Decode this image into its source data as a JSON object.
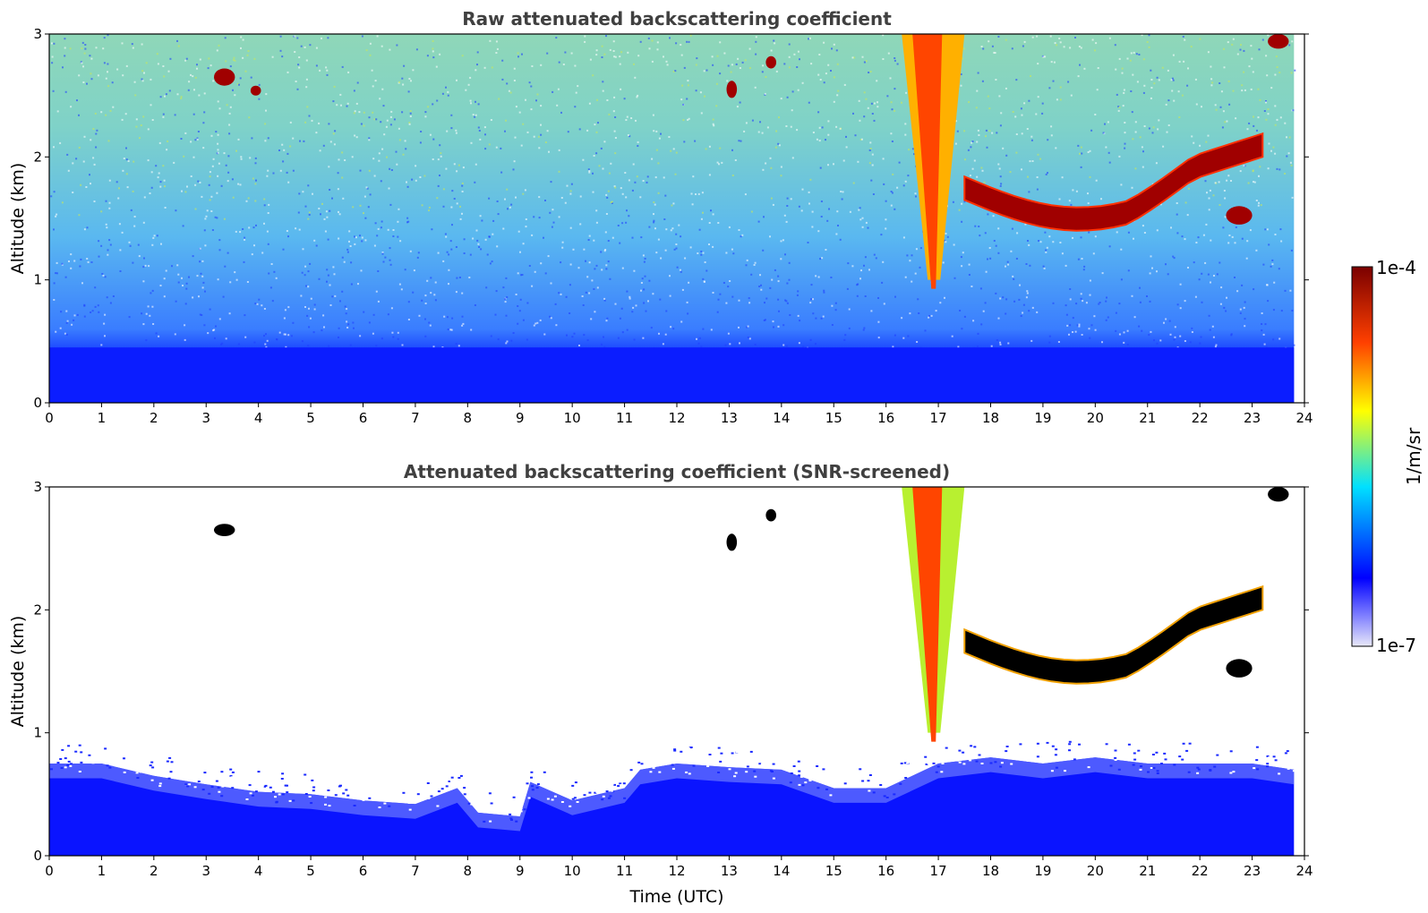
{
  "chart_data": [
    {
      "type": "heatmap",
      "title": "Raw attenuated backscattering coefficient",
      "xlabel": "",
      "ylabel": "Altitude (km)",
      "xlim": [
        0,
        24
      ],
      "ylim": [
        0,
        3
      ],
      "xticks": [
        "0",
        "1",
        "2",
        "3",
        "4",
        "5",
        "6",
        "7",
        "8",
        "9",
        "10",
        "11",
        "12",
        "13",
        "14",
        "15",
        "16",
        "17",
        "18",
        "19",
        "20",
        "21",
        "22",
        "23",
        "24"
      ],
      "yticks": [
        "0",
        "1",
        "2",
        "3"
      ],
      "features": [
        {
          "kind": "aerosol_layer",
          "t_start": 0,
          "t_end": 23.8,
          "alt_top": 0.45,
          "level": "blue"
        },
        {
          "kind": "background_noise",
          "t_start": 0,
          "t_end": 23.8,
          "alt_bottom": 0.45,
          "alt_top": 3.0,
          "level": "cyan-green"
        },
        {
          "kind": "cloud",
          "t_start": 3.15,
          "t_end": 3.55,
          "alt_bottom": 2.58,
          "alt_top": 2.72
        },
        {
          "kind": "cloud",
          "t_start": 3.85,
          "t_end": 4.05,
          "alt_bottom": 2.5,
          "alt_top": 2.58
        },
        {
          "kind": "cloud",
          "t_start": 12.95,
          "t_end": 13.15,
          "alt_bottom": 2.48,
          "alt_top": 2.62
        },
        {
          "kind": "cloud",
          "t_start": 13.7,
          "t_end": 13.9,
          "alt_bottom": 2.72,
          "alt_top": 2.82
        },
        {
          "kind": "virga",
          "t_start": 16.3,
          "t_end": 17.5,
          "alt_bottom": 1.0,
          "alt_top": 3.0
        },
        {
          "kind": "cloud_layer",
          "t_start": 17.5,
          "t_end": 23.2,
          "alt_bottom": 1.5,
          "alt_top": 2.1
        },
        {
          "kind": "cloud",
          "t_start": 22.5,
          "t_end": 23.0,
          "alt_bottom": 1.45,
          "alt_top": 1.6
        },
        {
          "kind": "cloud",
          "t_start": 23.3,
          "t_end": 23.7,
          "alt_bottom": 2.88,
          "alt_top": 3.0
        }
      ]
    },
    {
      "type": "heatmap",
      "title": "Attenuated backscattering coefficient (SNR-screened)",
      "xlabel": "Time (UTC)",
      "ylabel": "Altitude (km)",
      "xlim": [
        0,
        24
      ],
      "ylim": [
        0,
        3
      ],
      "xticks": [
        "0",
        "1",
        "2",
        "3",
        "4",
        "5",
        "6",
        "7",
        "8",
        "9",
        "10",
        "11",
        "12",
        "13",
        "14",
        "15",
        "16",
        "17",
        "18",
        "19",
        "20",
        "21",
        "22",
        "23",
        "24"
      ],
      "yticks": [
        "0",
        "1",
        "2",
        "3"
      ],
      "boundary_layer_top_km": [
        [
          0,
          0.75
        ],
        [
          1,
          0.75
        ],
        [
          2,
          0.65
        ],
        [
          3,
          0.58
        ],
        [
          4,
          0.52
        ],
        [
          5,
          0.5
        ],
        [
          6,
          0.45
        ],
        [
          7,
          0.42
        ],
        [
          7.8,
          0.55
        ],
        [
          8.2,
          0.35
        ],
        [
          9,
          0.32
        ],
        [
          9.2,
          0.6
        ],
        [
          10,
          0.45
        ],
        [
          11,
          0.55
        ],
        [
          11.3,
          0.7
        ],
        [
          12,
          0.75
        ],
        [
          13,
          0.72
        ],
        [
          14,
          0.7
        ],
        [
          15,
          0.55
        ],
        [
          16,
          0.55
        ],
        [
          17,
          0.75
        ],
        [
          18,
          0.8
        ],
        [
          19,
          0.75
        ],
        [
          20,
          0.8
        ],
        [
          21,
          0.75
        ],
        [
          22,
          0.75
        ],
        [
          23,
          0.75
        ],
        [
          23.8,
          0.7
        ]
      ],
      "features": [
        {
          "kind": "cloud",
          "t_start": 3.15,
          "t_end": 3.55,
          "alt_bottom": 2.6,
          "alt_top": 2.7
        },
        {
          "kind": "cloud",
          "t_start": 12.95,
          "t_end": 13.15,
          "alt_bottom": 2.48,
          "alt_top": 2.62
        },
        {
          "kind": "cloud",
          "t_start": 13.7,
          "t_end": 13.9,
          "alt_bottom": 2.72,
          "alt_top": 2.82
        },
        {
          "kind": "virga",
          "t_start": 16.3,
          "t_end": 17.5,
          "alt_bottom": 1.0,
          "alt_top": 3.0
        },
        {
          "kind": "cloud_layer",
          "t_start": 17.5,
          "t_end": 23.2,
          "alt_bottom": 1.5,
          "alt_top": 2.1
        },
        {
          "kind": "cloud",
          "t_start": 22.5,
          "t_end": 23.0,
          "alt_bottom": 1.45,
          "alt_top": 1.6
        },
        {
          "kind": "cloud",
          "t_start": 23.3,
          "t_end": 23.7,
          "alt_bottom": 2.88,
          "alt_top": 3.0
        }
      ]
    }
  ],
  "colorbar": {
    "max_label": "1e-4",
    "min_label": "1e-7",
    "unit_label": "1/m/sr",
    "colormap": [
      "#e8e8f8",
      "#0000ff",
      "#00e0ff",
      "#ffff00",
      "#ff4000",
      "#7a0000"
    ]
  }
}
